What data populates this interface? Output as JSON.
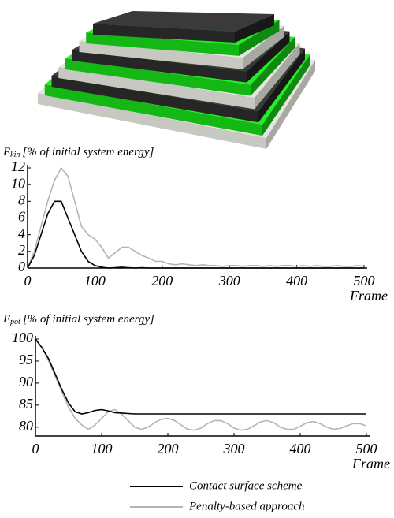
{
  "chart_data": [
    {
      "type": "line",
      "ylabel_symbol": "E",
      "ylabel_subscript": "kin",
      "ylabel": "[% of initial system energy]",
      "xlabel": "Frame",
      "x": [
        0,
        10,
        20,
        30,
        40,
        50,
        60,
        70,
        80,
        90,
        100,
        110,
        120,
        130,
        140,
        150,
        160,
        170,
        180,
        190,
        200,
        210,
        220,
        230,
        240,
        250,
        260,
        270,
        280,
        290,
        300,
        310,
        320,
        330,
        340,
        350,
        360,
        370,
        380,
        390,
        400,
        410,
        420,
        430,
        440,
        450,
        460,
        470,
        480,
        490,
        500
      ],
      "series": [
        {
          "color": "#000000",
          "values": [
            0,
            1.5,
            4,
            6.5,
            8,
            8,
            6,
            4,
            2,
            0.8,
            0.3,
            0.1,
            0,
            0.05,
            0.1,
            0.05,
            0,
            0.05,
            0,
            0,
            0,
            0,
            0,
            0,
            0,
            0,
            0,
            0,
            0,
            0,
            0,
            0,
            0,
            0,
            0,
            0,
            0,
            0,
            0,
            0,
            0,
            0,
            0,
            0,
            0,
            0,
            0,
            0,
            0,
            0,
            0
          ]
        },
        {
          "color": "#b4b4b4",
          "values": [
            0,
            2,
            5,
            8,
            10.5,
            12,
            11,
            8,
            5,
            4,
            3.5,
            2.5,
            1.2,
            1.8,
            2.5,
            2.5,
            2,
            1.5,
            1.2,
            0.8,
            0.8,
            0.5,
            0.4,
            0.5,
            0.4,
            0.3,
            0.4,
            0.3,
            0.3,
            0.2,
            0.3,
            0.3,
            0.2,
            0.3,
            0.3,
            0.2,
            0.3,
            0.2,
            0.3,
            0.3,
            0.2,
            0.3,
            0.2,
            0.3,
            0.2,
            0.2,
            0.3,
            0.2,
            0.2,
            0.3,
            0.2
          ]
        }
      ],
      "xlim": [
        0,
        500
      ],
      "xticks": [
        0,
        100,
        200,
        300,
        400,
        500
      ],
      "ylim": [
        0,
        12
      ],
      "yticks": [
        0,
        2,
        4,
        6,
        8,
        10,
        12
      ]
    },
    {
      "type": "line",
      "ylabel_symbol": "E",
      "ylabel_subscript": "pot",
      "ylabel": "[% of initial system energy]",
      "xlabel": "Frame",
      "x": [
        0,
        10,
        20,
        30,
        40,
        50,
        60,
        70,
        80,
        90,
        100,
        110,
        120,
        130,
        140,
        150,
        160,
        170,
        180,
        190,
        200,
        210,
        220,
        230,
        240,
        250,
        260,
        270,
        280,
        290,
        300,
        310,
        320,
        330,
        340,
        350,
        360,
        370,
        380,
        390,
        400,
        410,
        420,
        430,
        440,
        450,
        460,
        470,
        480,
        490,
        500
      ],
      "series": [
        {
          "name": "Contact surface scheme",
          "color": "#000000",
          "values": [
            100,
            98,
            95.5,
            92,
            88.5,
            85.5,
            83.5,
            83,
            83.3,
            83.8,
            84,
            83.7,
            83.3,
            83.2,
            83.1,
            83,
            83,
            83,
            83,
            83,
            83,
            83,
            83,
            83,
            83,
            83,
            83,
            83,
            83,
            83,
            83,
            83,
            83,
            83,
            83,
            83,
            83,
            83,
            83,
            83,
            83,
            83,
            83,
            83,
            83,
            83,
            83,
            83,
            83,
            83,
            83
          ]
        },
        {
          "name": "Penalty-based approach",
          "color": "#b4b4b4",
          "values": [
            100,
            98,
            95,
            91.5,
            88,
            84.5,
            82,
            80.5,
            79.5,
            80.5,
            82,
            83.5,
            84,
            83,
            81.5,
            80,
            79.5,
            80,
            81,
            81.8,
            82,
            81.5,
            80.5,
            79.5,
            79.3,
            79.8,
            80.8,
            81.5,
            81.5,
            80.8,
            79.8,
            79.3,
            79.5,
            80.3,
            81.2,
            81.5,
            81,
            80,
            79.5,
            79.5,
            80.2,
            81,
            81.3,
            80.8,
            80,
            79.5,
            79.7,
            80.3,
            80.8,
            80.8,
            80.3
          ]
        }
      ],
      "xlim": [
        0,
        500
      ],
      "xticks": [
        0,
        100,
        200,
        300,
        400,
        500
      ],
      "ylim": [
        78,
        100
      ],
      "yticks": [
        80,
        85,
        90,
        95,
        100
      ]
    }
  ]
}
